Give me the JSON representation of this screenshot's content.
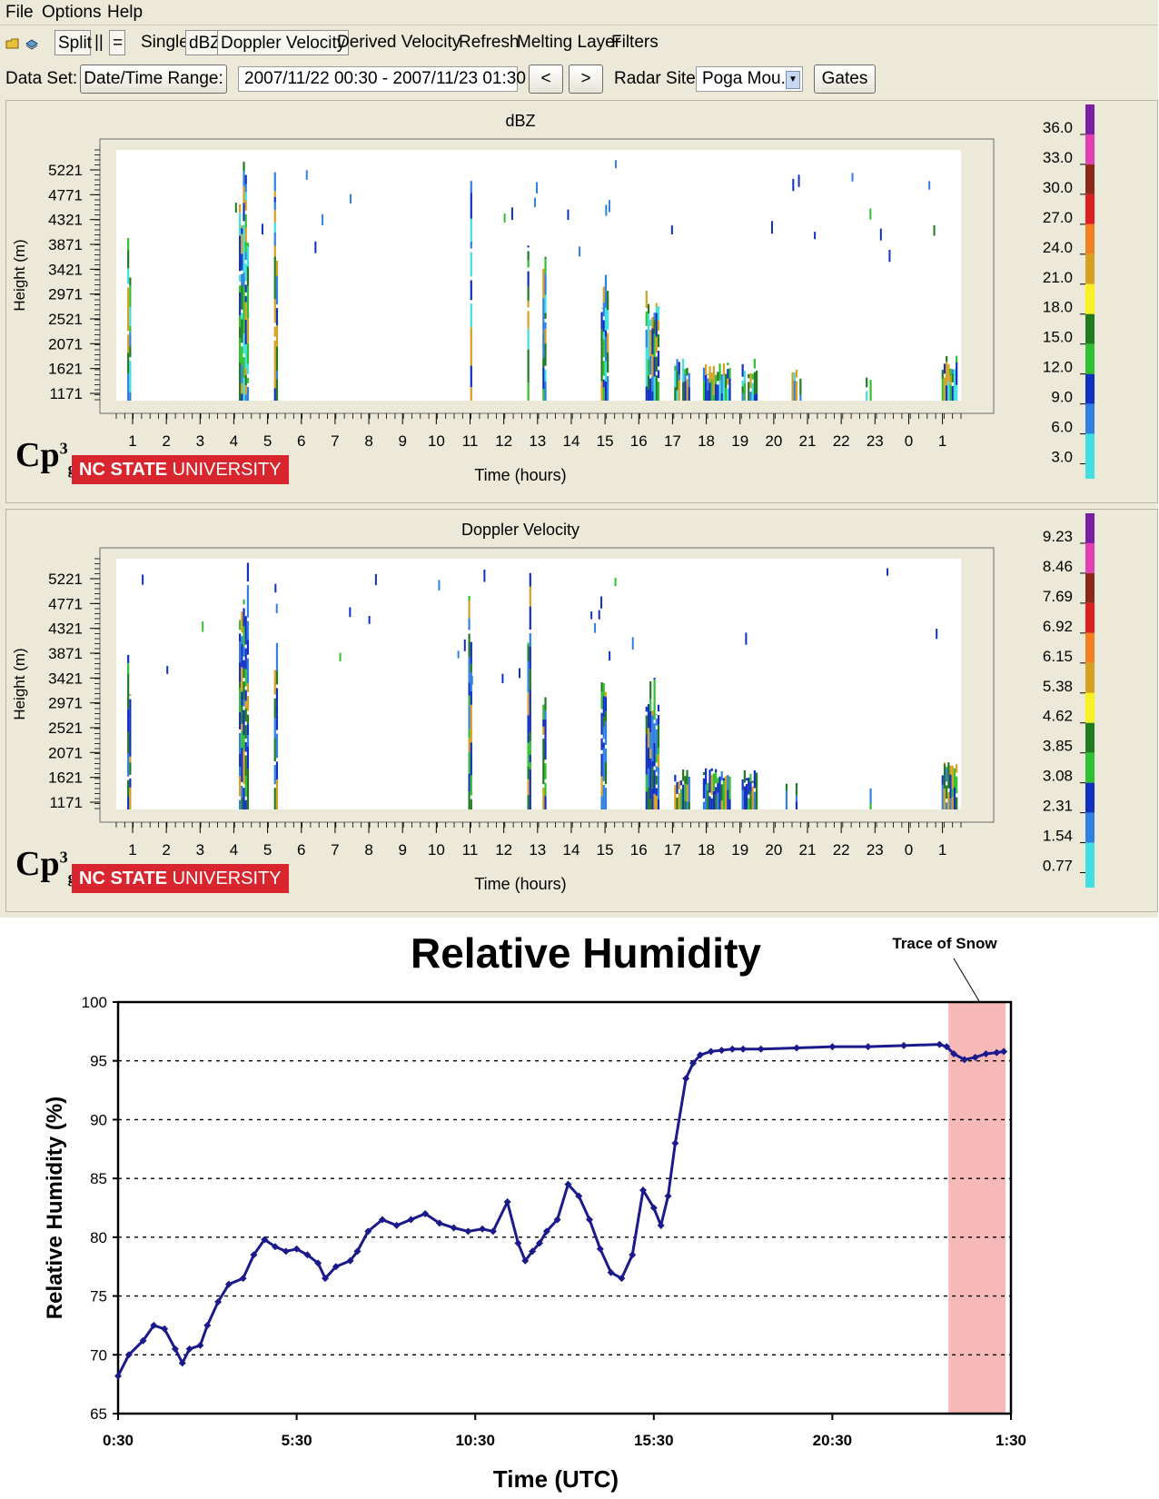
{
  "menu": {
    "file": "File",
    "options": "Options",
    "help": "Help"
  },
  "toolbar": {
    "split": "Split",
    "pause": "||",
    "equals": "=",
    "single": "Single",
    "dbz": "dBZ",
    "doppler": "Doppler Velocity",
    "derived": "Derived Velocity",
    "refresh": "Refresh",
    "melting": "Melting Layer",
    "filters": "Filters"
  },
  "dataset": {
    "label": "Data Set:",
    "range_button": "Date/Time Range:",
    "range_value": "2007/11/22 00:30 - 2007/11/23 01:30",
    "prev": "<",
    "next": ">",
    "site_label": "Radar Site:",
    "site_value": "Poga Mou...",
    "gates": "Gates"
  },
  "branding": {
    "logo": "Cp",
    "logo_sup": "3",
    "logo_sub": "g",
    "univ_bold": "NC STATE",
    "univ_light": " UNIVERSITY"
  },
  "radar_common": {
    "ylabel": "Height (m)",
    "xlabel": "Time (hours)",
    "y_ticks": [
      "5221",
      "4771",
      "4321",
      "3871",
      "3421",
      "2971",
      "2521",
      "2071",
      "1621",
      "1171"
    ],
    "x_ticks": [
      "1",
      "2",
      "3",
      "4",
      "5",
      "6",
      "7",
      "8",
      "9",
      "10",
      "11",
      "12",
      "13",
      "14",
      "15",
      "16",
      "17",
      "18",
      "19",
      "20",
      "21",
      "22",
      "23",
      "0",
      "1"
    ]
  },
  "panel_dbz": {
    "title": "dBZ",
    "scale_labels": [
      "36.0",
      "33.0",
      "30.0",
      "27.0",
      "24.0",
      "21.0",
      "18.0",
      "15.0",
      "12.0",
      "9.0",
      "6.0",
      "3.0"
    ],
    "scale_colors": [
      "#7a1fa2",
      "#e040b0",
      "#8b2a1a",
      "#e02020",
      "#f08020",
      "#d8a020",
      "#f8f020",
      "#207a20",
      "#30c030",
      "#1030c0",
      "#3080e0",
      "#40e0e0"
    ]
  },
  "panel_vel": {
    "title": "Doppler Velocity",
    "scale_labels": [
      "9.23",
      "8.46",
      "7.69",
      "6.92",
      "6.15",
      "5.38",
      "4.62",
      "3.85",
      "3.08",
      "2.31",
      "1.54",
      "0.77"
    ],
    "scale_colors": [
      "#7a1fa2",
      "#e040b0",
      "#8b2a1a",
      "#e02020",
      "#f08020",
      "#d8a020",
      "#f8f020",
      "#207a20",
      "#30c030",
      "#1030c0",
      "#3080e0",
      "#40e0e0"
    ]
  },
  "chart_data": {
    "type": "scatter",
    "title": "Relative Humidity",
    "xlabel": "Time (UTC)",
    "ylabel": "Relative Humidity (%)",
    "ylim": [
      65,
      100
    ],
    "y_ticks": [
      65,
      70,
      75,
      80,
      85,
      90,
      95,
      100
    ],
    "x_ticks": [
      "0:30",
      "5:30",
      "10:30",
      "15:30",
      "20:30",
      "1:30"
    ],
    "x_unit": "hours since 0:30 UTC",
    "xlim": [
      0,
      25
    ],
    "grid": "dashed horizontal",
    "annotation": "Trace of Snow",
    "shaded_region": [
      23.25,
      24.85
    ],
    "colors": {
      "series": "#1a1a8c",
      "shade": "#f7b8b8"
    },
    "series": [
      {
        "x": [
          0,
          0.3,
          0.7,
          1.0,
          1.3,
          1.6,
          1.8,
          2.0,
          2.3,
          2.5,
          2.8,
          3.1,
          3.5,
          3.8,
          4.1,
          4.4,
          4.7,
          5.0,
          5.3,
          5.6,
          5.8,
          6.1,
          6.5,
          6.7,
          7.0,
          7.4,
          7.8,
          8.2,
          8.6,
          9.0,
          9.4,
          9.8,
          10.2,
          10.5,
          10.9,
          11.2,
          11.4,
          11.6,
          11.8,
          12.0,
          12.3,
          12.6,
          12.9,
          13.2,
          13.5,
          13.8,
          14.1,
          14.4,
          14.7,
          15.0,
          15.2,
          15.4,
          15.6,
          15.9,
          16.1,
          16.3,
          16.6,
          16.9,
          17.2,
          17.5,
          18,
          19,
          20,
          21,
          22,
          23,
          23.2,
          23.4,
          23.7,
          24.0,
          24.3,
          24.6,
          24.8
        ],
        "y": [
          68.2,
          70.0,
          71.2,
          72.5,
          72.2,
          70.5,
          69.3,
          70.5,
          70.8,
          72.5,
          74.5,
          76.0,
          76.5,
          78.5,
          79.8,
          79.2,
          78.8,
          79.0,
          78.5,
          77.8,
          76.5,
          77.5,
          78.0,
          78.8,
          80.5,
          81.5,
          81.0,
          81.5,
          82.0,
          81.2,
          80.8,
          80.5,
          80.7,
          80.5,
          83.0,
          79.5,
          78.0,
          78.8,
          79.5,
          80.5,
          81.5,
          84.5,
          83.5,
          81.5,
          79.0,
          77.0,
          76.5,
          78.5,
          84.0,
          82.5,
          81.0,
          83.5,
          88.0,
          93.5,
          94.8,
          95.5,
          95.8,
          95.9,
          96.0,
          96.0,
          96.0,
          96.1,
          96.2,
          96.2,
          96.3,
          96.4,
          96.2,
          95.6,
          95.1,
          95.3,
          95.6,
          95.7,
          95.8
        ]
      }
    ]
  }
}
